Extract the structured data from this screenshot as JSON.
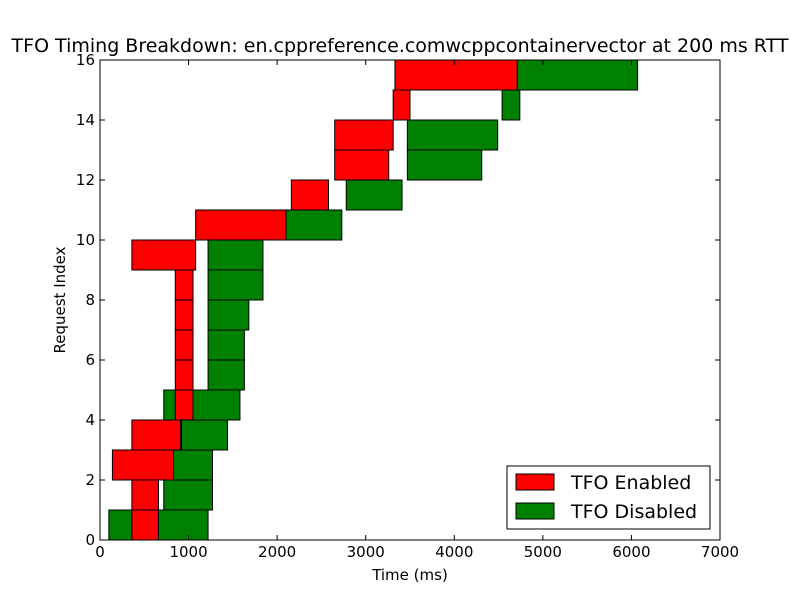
{
  "chart_data": {
    "type": "bar",
    "orientation": "horizontal-intervals",
    "title": "TFO Timing Breakdown: en.cppreference.comwcppcontainervector at 200 ms RTT",
    "xlabel": "Time (ms)",
    "ylabel": "Request Index",
    "xlim": [
      0,
      7000
    ],
    "ylim": [
      0,
      16
    ],
    "xticks": [
      0,
      1000,
      2000,
      3000,
      4000,
      5000,
      6000,
      7000
    ],
    "yticks": [
      0,
      2,
      4,
      6,
      8,
      10,
      12,
      14,
      16
    ],
    "grid": false,
    "legend_position": "lower-right",
    "series": [
      {
        "name": "TFO Disabled",
        "color": "#008000",
        "bars": [
          {
            "index": 0,
            "start": 100,
            "end": 1220
          },
          {
            "index": 1,
            "start": 720,
            "end": 1270
          },
          {
            "index": 2,
            "start": 820,
            "end": 1270
          },
          {
            "index": 3,
            "start": 920,
            "end": 1440
          },
          {
            "index": 4,
            "start": 720,
            "end": 1580
          },
          {
            "index": 5,
            "start": 1220,
            "end": 1630
          },
          {
            "index": 6,
            "start": 1220,
            "end": 1630
          },
          {
            "index": 7,
            "start": 1220,
            "end": 1680
          },
          {
            "index": 8,
            "start": 1220,
            "end": 1840
          },
          {
            "index": 9,
            "start": 1220,
            "end": 1840
          },
          {
            "index": 10,
            "start": 1570,
            "end": 2730
          },
          {
            "index": 11,
            "start": 2780,
            "end": 3410
          },
          {
            "index": 12,
            "start": 3470,
            "end": 4310
          },
          {
            "index": 13,
            "start": 3470,
            "end": 4490
          },
          {
            "index": 14,
            "start": 4540,
            "end": 4740
          },
          {
            "index": 15,
            "start": 4350,
            "end": 6070
          }
        ]
      },
      {
        "name": "TFO Enabled",
        "color": "#ff0000",
        "bars": [
          {
            "index": 0,
            "start": 360,
            "end": 660
          },
          {
            "index": 1,
            "start": 360,
            "end": 660
          },
          {
            "index": 2,
            "start": 140,
            "end": 830
          },
          {
            "index": 3,
            "start": 360,
            "end": 910
          },
          {
            "index": 4,
            "start": 850,
            "end": 1050
          },
          {
            "index": 5,
            "start": 850,
            "end": 1050
          },
          {
            "index": 6,
            "start": 850,
            "end": 1050
          },
          {
            "index": 7,
            "start": 850,
            "end": 1050
          },
          {
            "index": 8,
            "start": 850,
            "end": 1050
          },
          {
            "index": 9,
            "start": 360,
            "end": 1080
          },
          {
            "index": 10,
            "start": 1080,
            "end": 2100
          },
          {
            "index": 11,
            "start": 2160,
            "end": 2580
          },
          {
            "index": 12,
            "start": 2650,
            "end": 3260
          },
          {
            "index": 13,
            "start": 2650,
            "end": 3310
          },
          {
            "index": 14,
            "start": 3310,
            "end": 3500
          },
          {
            "index": 15,
            "start": 3330,
            "end": 4710
          }
        ]
      }
    ]
  },
  "legend": {
    "items": [
      {
        "label": "TFO Enabled",
        "color": "#ff0000"
      },
      {
        "label": "TFO Disabled",
        "color": "#008000"
      }
    ]
  }
}
